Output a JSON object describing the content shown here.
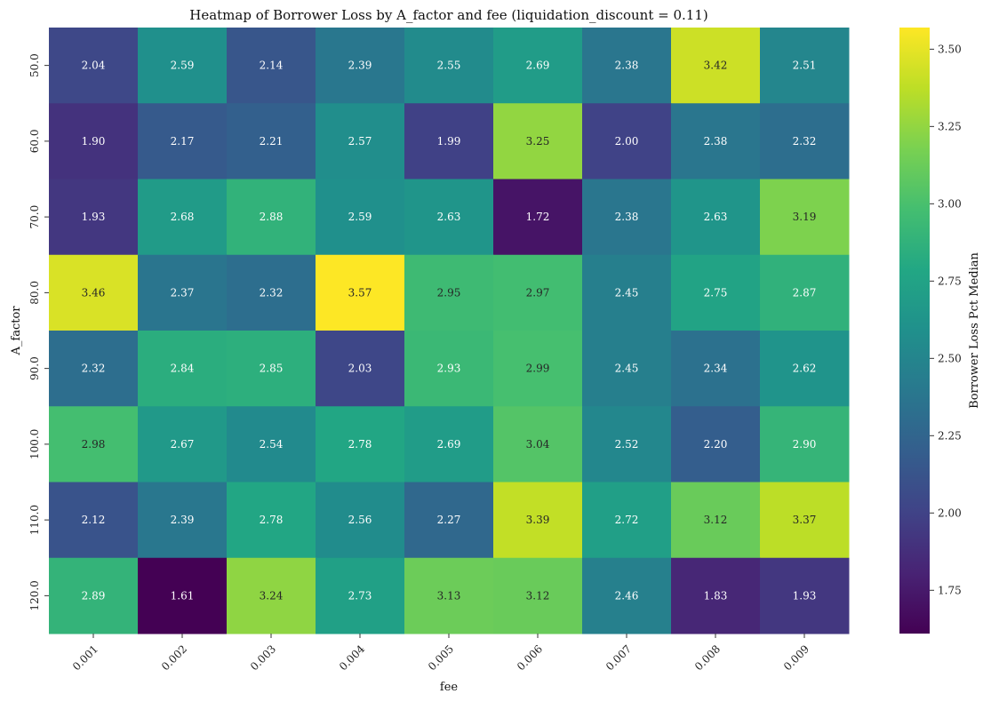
{
  "chart_data": {
    "type": "heatmap",
    "title": "Heatmap of Borrower Loss by A_factor and fee (liquidation_discount = 0.11)",
    "xlabel": "fee",
    "ylabel": "A_factor",
    "x_categories": [
      "0.001",
      "0.002",
      "0.003",
      "0.004",
      "0.005",
      "0.006",
      "0.007",
      "0.008",
      "0.009"
    ],
    "y_categories": [
      "50.0",
      "60.0",
      "70.0",
      "80.0",
      "90.0",
      "100.0",
      "110.0",
      "120.0"
    ],
    "values": [
      [
        2.04,
        2.59,
        2.14,
        2.39,
        2.55,
        2.69,
        2.38,
        3.42,
        2.51
      ],
      [
        1.9,
        2.17,
        2.21,
        2.57,
        1.99,
        3.25,
        2.0,
        2.38,
        2.32
      ],
      [
        1.93,
        2.68,
        2.88,
        2.59,
        2.63,
        1.72,
        2.38,
        2.63,
        3.19
      ],
      [
        3.46,
        2.37,
        2.32,
        3.57,
        2.95,
        2.97,
        2.45,
        2.75,
        2.87
      ],
      [
        2.32,
        2.84,
        2.85,
        2.03,
        2.93,
        2.99,
        2.45,
        2.34,
        2.62
      ],
      [
        2.98,
        2.67,
        2.54,
        2.78,
        2.69,
        3.04,
        2.52,
        2.2,
        2.9
      ],
      [
        2.12,
        2.39,
        2.78,
        2.56,
        2.27,
        3.39,
        2.72,
        3.12,
        3.37
      ],
      [
        2.89,
        1.61,
        3.24,
        2.73,
        3.13,
        3.12,
        2.46,
        1.83,
        1.93
      ]
    ],
    "value_format": "2 decimals",
    "colormap": "viridis",
    "colorbar": {
      "label": "Borrower Loss Pct Median",
      "range": [
        1.61,
        3.57
      ],
      "ticks": [
        1.75,
        2.0,
        2.25,
        2.5,
        2.75,
        3.0,
        3.25,
        3.5
      ],
      "tick_labels": [
        "1.75",
        "2.00",
        "2.25",
        "2.50",
        "2.75",
        "3.00",
        "3.25",
        "3.50"
      ]
    }
  }
}
